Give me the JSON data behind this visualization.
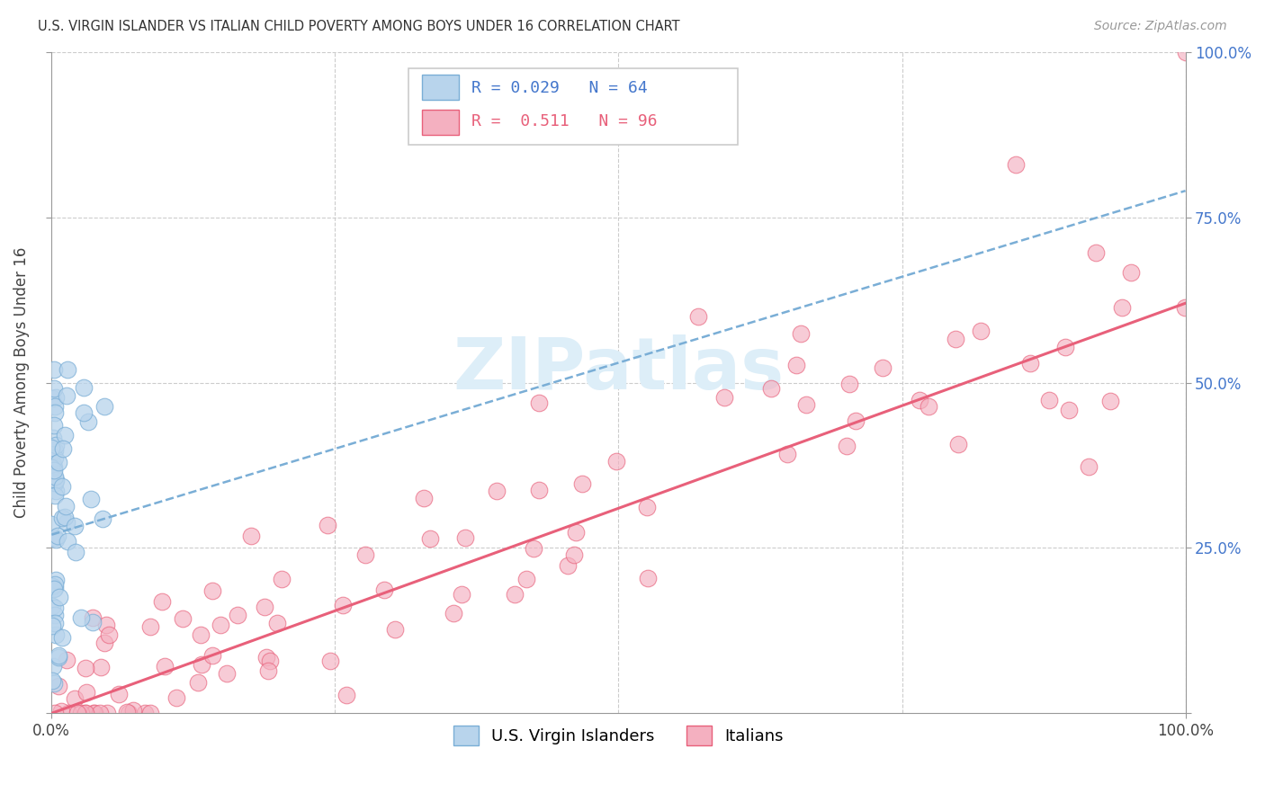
{
  "title": "U.S. VIRGIN ISLANDER VS ITALIAN CHILD POVERTY AMONG BOYS UNDER 16 CORRELATION CHART",
  "source": "Source: ZipAtlas.com",
  "ylabel": "Child Poverty Among Boys Under 16",
  "blue_face": "#b8d4ec",
  "blue_edge": "#7aaed6",
  "pink_face": "#f4b0c0",
  "pink_edge": "#e8607a",
  "blue_line": "#7aaed6",
  "pink_line": "#e8607a",
  "grid_color": "#cccccc",
  "watermark_color": "#ddeef8",
  "right_tick_color": "#4477cc",
  "axis_color": "#999999",
  "title_color": "#333333",
  "source_color": "#999999",
  "legend_r1_color": "#4477cc",
  "legend_r2_color": "#e8607a",
  "scatter_size": 180,
  "blue_r": 0.029,
  "blue_n": 64,
  "pink_r": 0.511,
  "pink_n": 96,
  "blue_line_intercept": 0.27,
  "blue_line_slope": 0.52,
  "pink_line_intercept": 0.0,
  "pink_line_slope": 0.62
}
